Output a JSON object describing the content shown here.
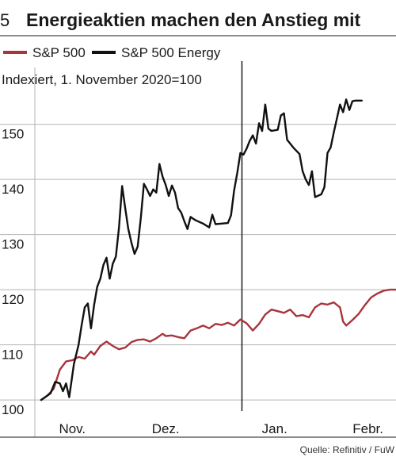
{
  "header": {
    "number": "5",
    "title": "Energieaktien machen den Anstieg mit"
  },
  "source": "Quelle: Refinitiv / FuW",
  "colors": {
    "sp500": "#a8343c",
    "energy": "#111111",
    "grid": "#b3b3b3",
    "divider": "#1a1a1a"
  },
  "chart_data": {
    "type": "line",
    "subtitle": "Indexiert, 1. November 2020=100",
    "y_ticks": [
      100,
      110,
      120,
      130,
      140,
      150
    ],
    "y_range": [
      98,
      156
    ],
    "x_labels": [
      {
        "label": "Nov.",
        "x": 1
      },
      {
        "label": "Dez.",
        "x": 4
      },
      {
        "label": "Jan.",
        "x": 7.5
      },
      {
        "label": "Febr.",
        "x": 10.5
      }
    ],
    "x_range": [
      0,
      11.4
    ],
    "year_boundary_x": 6.45,
    "grid": true,
    "legend_position": "top",
    "series": [
      {
        "name": "S&P 500",
        "color_key": "sp500",
        "points": [
          [
            0.0,
            100.0
          ],
          [
            0.2,
            100.8
          ],
          [
            0.4,
            102.0
          ],
          [
            0.6,
            105.5
          ],
          [
            0.8,
            107.0
          ],
          [
            1.0,
            107.2
          ],
          [
            1.2,
            107.8
          ],
          [
            1.4,
            107.5
          ],
          [
            1.6,
            108.8
          ],
          [
            1.7,
            108.2
          ],
          [
            1.9,
            109.8
          ],
          [
            2.1,
            110.6
          ],
          [
            2.3,
            109.8
          ],
          [
            2.5,
            109.2
          ],
          [
            2.7,
            109.5
          ],
          [
            2.9,
            110.5
          ],
          [
            3.1,
            110.9
          ],
          [
            3.3,
            111.0
          ],
          [
            3.5,
            110.6
          ],
          [
            3.7,
            111.2
          ],
          [
            3.9,
            112.0
          ],
          [
            4.0,
            111.6
          ],
          [
            4.2,
            111.7
          ],
          [
            4.4,
            111.4
          ],
          [
            4.6,
            111.2
          ],
          [
            4.8,
            112.6
          ],
          [
            5.0,
            113.0
          ],
          [
            5.2,
            113.5
          ],
          [
            5.4,
            113.0
          ],
          [
            5.6,
            113.8
          ],
          [
            5.8,
            113.6
          ],
          [
            6.0,
            114.0
          ],
          [
            6.2,
            113.5
          ],
          [
            6.4,
            114.6
          ],
          [
            6.6,
            113.9
          ],
          [
            6.8,
            112.6
          ],
          [
            7.0,
            113.8
          ],
          [
            7.2,
            115.5
          ],
          [
            7.4,
            116.4
          ],
          [
            7.6,
            116.1
          ],
          [
            7.8,
            115.8
          ],
          [
            8.0,
            116.4
          ],
          [
            8.2,
            115.2
          ],
          [
            8.4,
            115.4
          ],
          [
            8.6,
            115.0
          ],
          [
            8.8,
            116.8
          ],
          [
            9.0,
            117.5
          ],
          [
            9.2,
            117.3
          ],
          [
            9.4,
            117.7
          ],
          [
            9.6,
            116.8
          ],
          [
            9.7,
            114.2
          ],
          [
            9.8,
            113.5
          ],
          [
            10.0,
            114.5
          ],
          [
            10.2,
            115.6
          ],
          [
            10.4,
            117.2
          ],
          [
            10.6,
            118.6
          ],
          [
            10.8,
            119.3
          ],
          [
            11.0,
            119.8
          ],
          [
            11.2,
            120.0
          ],
          [
            11.4,
            120.0
          ]
        ]
      },
      {
        "name": "S&P 500 Energy",
        "color_key": "energy",
        "points": [
          [
            0.0,
            100.0
          ],
          [
            0.3,
            101.2
          ],
          [
            0.45,
            103.3
          ],
          [
            0.6,
            103.0
          ],
          [
            0.7,
            101.6
          ],
          [
            0.8,
            103.0
          ],
          [
            0.9,
            100.5
          ],
          [
            1.05,
            106.5
          ],
          [
            1.2,
            110.0
          ],
          [
            1.3,
            113.6
          ],
          [
            1.4,
            116.8
          ],
          [
            1.5,
            117.5
          ],
          [
            1.6,
            113.0
          ],
          [
            1.7,
            117.2
          ],
          [
            1.8,
            120.5
          ],
          [
            1.9,
            122.0
          ],
          [
            2.0,
            124.5
          ],
          [
            2.1,
            125.8
          ],
          [
            2.2,
            122.0
          ],
          [
            2.3,
            124.7
          ],
          [
            2.4,
            126.0
          ],
          [
            2.5,
            131.2
          ],
          [
            2.6,
            138.8
          ],
          [
            2.7,
            134.8
          ],
          [
            2.8,
            131.0
          ],
          [
            2.9,
            128.5
          ],
          [
            3.0,
            126.5
          ],
          [
            3.1,
            127.8
          ],
          [
            3.2,
            133.0
          ],
          [
            3.3,
            139.2
          ],
          [
            3.4,
            138.2
          ],
          [
            3.5,
            137.0
          ],
          [
            3.6,
            138.2
          ],
          [
            3.7,
            137.6
          ],
          [
            3.8,
            142.8
          ],
          [
            3.9,
            140.5
          ],
          [
            4.0,
            139.0
          ],
          [
            4.1,
            137.0
          ],
          [
            4.2,
            138.9
          ],
          [
            4.3,
            137.6
          ],
          [
            4.4,
            134.8
          ],
          [
            4.5,
            134.0
          ],
          [
            4.6,
            132.4
          ],
          [
            4.7,
            131.0
          ],
          [
            4.8,
            133.2
          ],
          [
            4.9,
            132.8
          ],
          [
            5.0,
            132.5
          ],
          [
            5.2,
            132.0
          ],
          [
            5.4,
            131.3
          ],
          [
            5.5,
            133.6
          ],
          [
            5.6,
            131.9
          ],
          [
            5.8,
            132.0
          ],
          [
            6.0,
            132.1
          ],
          [
            6.1,
            133.5
          ],
          [
            6.2,
            138.0
          ],
          [
            6.3,
            141.2
          ],
          [
            6.4,
            144.8
          ],
          [
            6.5,
            144.5
          ],
          [
            6.6,
            145.6
          ],
          [
            6.7,
            147.0
          ],
          [
            6.8,
            148.0
          ],
          [
            6.9,
            146.5
          ],
          [
            7.0,
            150.2
          ],
          [
            7.1,
            148.8
          ],
          [
            7.2,
            153.6
          ],
          [
            7.3,
            149.2
          ],
          [
            7.4,
            148.8
          ],
          [
            7.6,
            149.0
          ],
          [
            7.7,
            151.6
          ],
          [
            7.8,
            152.0
          ],
          [
            7.9,
            147.2
          ],
          [
            8.1,
            145.8
          ],
          [
            8.3,
            144.6
          ],
          [
            8.4,
            141.5
          ],
          [
            8.5,
            140.0
          ],
          [
            8.6,
            139.0
          ],
          [
            8.7,
            141.5
          ],
          [
            8.8,
            136.8
          ],
          [
            9.0,
            137.3
          ],
          [
            9.1,
            138.6
          ],
          [
            9.2,
            144.8
          ],
          [
            9.3,
            145.8
          ],
          [
            9.4,
            148.5
          ],
          [
            9.5,
            151.0
          ],
          [
            9.6,
            153.6
          ],
          [
            9.7,
            152.2
          ],
          [
            9.8,
            154.5
          ],
          [
            9.9,
            152.6
          ],
          [
            10.0,
            154.2
          ],
          [
            10.1,
            154.3
          ],
          [
            10.3,
            154.3
          ]
        ]
      }
    ]
  }
}
